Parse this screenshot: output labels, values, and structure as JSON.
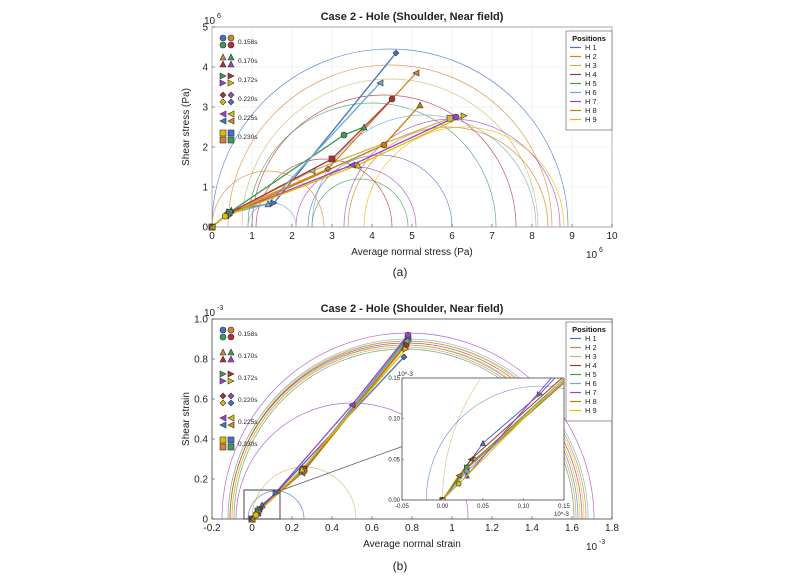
{
  "palette": {
    "H 1": "#4472c4",
    "H 2": "#d9822b",
    "H 3": "#c9b458",
    "H 4": "#b03030",
    "H 5": "#3d9a58",
    "H 6": "#6ea8d6",
    "H 7": "#a040c8",
    "H 8": "#c97d00",
    "H 9": "#e6b800"
  },
  "legend_title": "Positions",
  "series_names": [
    "H 1",
    "H 2",
    "H 3",
    "H 4",
    "H 5",
    "H 6",
    "H 7",
    "H 8",
    "H 9"
  ],
  "time_labels": [
    "0.158s",
    "0.170s",
    "0.172s",
    "0.220s",
    "0.225s",
    "0.230s"
  ],
  "captions": [
    "(a)",
    "(b)"
  ],
  "chart_data": [
    {
      "type": "line",
      "title": "Case 2 - Hole (Shoulder, Near field)",
      "xlabel": "Average normal stress (Pa)",
      "ylabel": "Shear stress (Pa)",
      "x_exponent": "10",
      "x_exponent_power": "6",
      "y_exponent": "10",
      "y_exponent_power": "6",
      "xlim": [
        0,
        10
      ],
      "ylim": [
        0,
        5
      ],
      "xticks": [
        "0",
        "1",
        "2",
        "3",
        "4",
        "5",
        "6",
        "7",
        "8",
        "9",
        "10"
      ],
      "yticks": [
        "0",
        "1",
        "2",
        "3",
        "4",
        "5"
      ],
      "grid": true,
      "legend_placement": "top-right",
      "series": [
        {
          "name": "H 1",
          "points": [
            [
              0,
              0
            ],
            [
              0.48,
              0.42
            ],
            [
              1.55,
              0.6
            ],
            [
              4.6,
              4.35
            ]
          ]
        },
        {
          "name": "H 2",
          "points": [
            [
              0,
              0
            ],
            [
              0.45,
              0.38
            ],
            [
              2.9,
              1.45
            ],
            [
              5.1,
              3.85
            ]
          ]
        },
        {
          "name": "H 3",
          "points": [
            [
              0,
              0
            ],
            [
              0.42,
              0.35
            ],
            [
              2.5,
              1.4
            ],
            [
              5.95,
              2.72
            ]
          ]
        },
        {
          "name": "H 4",
          "points": [
            [
              0,
              0
            ],
            [
              0.4,
              0.33
            ],
            [
              3.0,
              1.7
            ],
            [
              4.5,
              3.2
            ]
          ]
        },
        {
          "name": "H 5",
          "points": [
            [
              0,
              0
            ],
            [
              0.43,
              0.36
            ],
            [
              3.3,
              2.3
            ],
            [
              3.8,
              2.5
            ]
          ]
        },
        {
          "name": "H 6",
          "points": [
            [
              0,
              0
            ],
            [
              0.38,
              0.32
            ],
            [
              1.4,
              0.58
            ],
            [
              4.2,
              3.6
            ]
          ]
        },
        {
          "name": "H 7",
          "points": [
            [
              0,
              0
            ],
            [
              0.36,
              0.3
            ],
            [
              3.5,
              1.55
            ],
            [
              6.1,
              2.75
            ]
          ]
        },
        {
          "name": "H 8",
          "points": [
            [
              0,
              0
            ],
            [
              0.34,
              0.28
            ],
            [
              4.3,
              2.05
            ],
            [
              5.2,
              3.05
            ]
          ]
        },
        {
          "name": "H 9",
          "points": [
            [
              0,
              0
            ],
            [
              0.33,
              0.27
            ],
            [
              3.65,
              1.55
            ],
            [
              6.3,
              2.78
            ]
          ]
        }
      ],
      "circles": [
        {
          "series": "H 1",
          "center": 4.45,
          "radius": 4.45
        },
        {
          "series": "H 2",
          "center": 4.45,
          "radius": 4.05
        },
        {
          "series": "H 3",
          "center": 4.45,
          "radius": 3.7
        },
        {
          "series": "H 4",
          "center": 4.3,
          "radius": 3.3
        },
        {
          "series": "H 5",
          "center": 4.0,
          "radius": 3.1
        },
        {
          "series": "H 6",
          "center": 5.3,
          "radius": 2.8
        },
        {
          "series": "H 7",
          "center": 6.0,
          "radius": 2.7
        },
        {
          "series": "H 8",
          "center": 5.9,
          "radius": 2.5
        },
        {
          "series": "H 9",
          "center": 6.3,
          "radius": 2.5
        },
        {
          "series": "H 1",
          "center": 4.2,
          "radius": 1.8
        },
        {
          "series": "H 5",
          "center": 3.7,
          "radius": 1.2
        },
        {
          "series": "H 7",
          "center": 3.6,
          "radius": 1.5
        },
        {
          "series": "H 4",
          "center": 2.8,
          "radius": 1.7
        },
        {
          "series": "H 6",
          "center": 1.5,
          "radius": 0.6
        },
        {
          "series": "H 2",
          "center": 1.4,
          "radius": 1.4
        }
      ]
    },
    {
      "type": "line",
      "title": "Case 2 - Hole (Shoulder, Near field)",
      "xlabel": "Average normal strain",
      "ylabel": "Shear strain",
      "x_exponent": "10",
      "x_exponent_power": "-3",
      "y_exponent": "10",
      "y_exponent_power": "-3",
      "xlim": [
        -0.2,
        1.8
      ],
      "ylim": [
        0,
        1.0
      ],
      "xticks": [
        "-0.2",
        "0",
        "0.2",
        "0.4",
        "0.6",
        "0.8",
        "1",
        "1.2",
        "1.4",
        "1.6",
        "1.8"
      ],
      "yticks": [
        "0",
        "0.2",
        "0.4",
        "0.6",
        "0.8",
        "1.0"
      ],
      "grid": false,
      "legend_placement": "top-right",
      "series": [
        {
          "name": "H 1",
          "points": [
            [
              0,
              0
            ],
            [
              0.05,
              0.07
            ],
            [
              0.12,
              0.13
            ],
            [
              0.76,
              0.81
            ]
          ]
        },
        {
          "name": "H 2",
          "points": [
            [
              0,
              0
            ],
            [
              0.04,
              0.05
            ],
            [
              0.26,
              0.24
            ],
            [
              0.77,
              0.88
            ]
          ]
        },
        {
          "name": "H 3",
          "points": [
            [
              0,
              0
            ],
            [
              0.04,
              0.05
            ],
            [
              0.25,
              0.23
            ],
            [
              0.78,
              0.9
            ]
          ]
        },
        {
          "name": "H 4",
          "points": [
            [
              0,
              0
            ],
            [
              0.035,
              0.05
            ],
            [
              0.26,
              0.25
            ],
            [
              0.77,
              0.87
            ]
          ]
        },
        {
          "name": "H 5",
          "points": [
            [
              0,
              0
            ],
            [
              0.03,
              0.04
            ],
            [
              0.25,
              0.24
            ],
            [
              0.78,
              0.91
            ]
          ]
        },
        {
          "name": "H 6",
          "points": [
            [
              0,
              0
            ],
            [
              0.03,
              0.035
            ],
            [
              0.25,
              0.24
            ],
            [
              0.77,
              0.89
            ]
          ]
        },
        {
          "name": "H 7",
          "points": [
            [
              0,
              0
            ],
            [
              0.03,
              0.03
            ],
            [
              0.5,
              0.57
            ],
            [
              0.78,
              0.92
            ]
          ]
        },
        {
          "name": "H 8",
          "points": [
            [
              0,
              0
            ],
            [
              0.02,
              0.03
            ],
            [
              0.26,
              0.24
            ],
            [
              0.76,
              0.86
            ]
          ]
        },
        {
          "name": "H 9",
          "points": [
            [
              0,
              0
            ],
            [
              0.02,
              0.02
            ],
            [
              0.25,
              0.25
            ],
            [
              0.77,
              0.85
            ]
          ]
        }
      ],
      "circles": [
        {
          "series": "H 1",
          "center": 0.76,
          "radius": 0.87
        },
        {
          "series": "H 2",
          "center": 0.76,
          "radius": 0.86
        },
        {
          "series": "H 3",
          "center": 0.77,
          "radius": 0.89
        },
        {
          "series": "H 4",
          "center": 0.77,
          "radius": 0.88
        },
        {
          "series": "H 5",
          "center": 0.76,
          "radius": 0.85
        },
        {
          "series": "H 6",
          "center": 0.78,
          "radius": 0.9
        },
        {
          "series": "H 7",
          "center": 0.78,
          "radius": 0.93
        },
        {
          "series": "H 8",
          "center": 0.78,
          "radius": 0.89
        },
        {
          "series": "H 9",
          "center": 0.77,
          "radius": 0.87
        },
        {
          "series": "H 7",
          "center": 0.5,
          "radius": 0.58
        },
        {
          "series": "H 3",
          "center": 0.26,
          "radius": 0.26
        },
        {
          "series": "H 1",
          "center": 0.12,
          "radius": 0.14
        }
      ],
      "inset": {
        "xlim": [
          -0.05,
          0.15
        ],
        "ylim": [
          0,
          0.15
        ],
        "xticks": [
          "-0.05",
          "0.00",
          "0.05",
          "0.10",
          "0.15"
        ],
        "yticks": [
          "0.00",
          "0.05",
          "0.10",
          "0.15"
        ],
        "x_exponent": "10",
        "x_exponent_power": "-3",
        "y_exponent": "10",
        "y_exponent_power": "-3"
      }
    }
  ]
}
